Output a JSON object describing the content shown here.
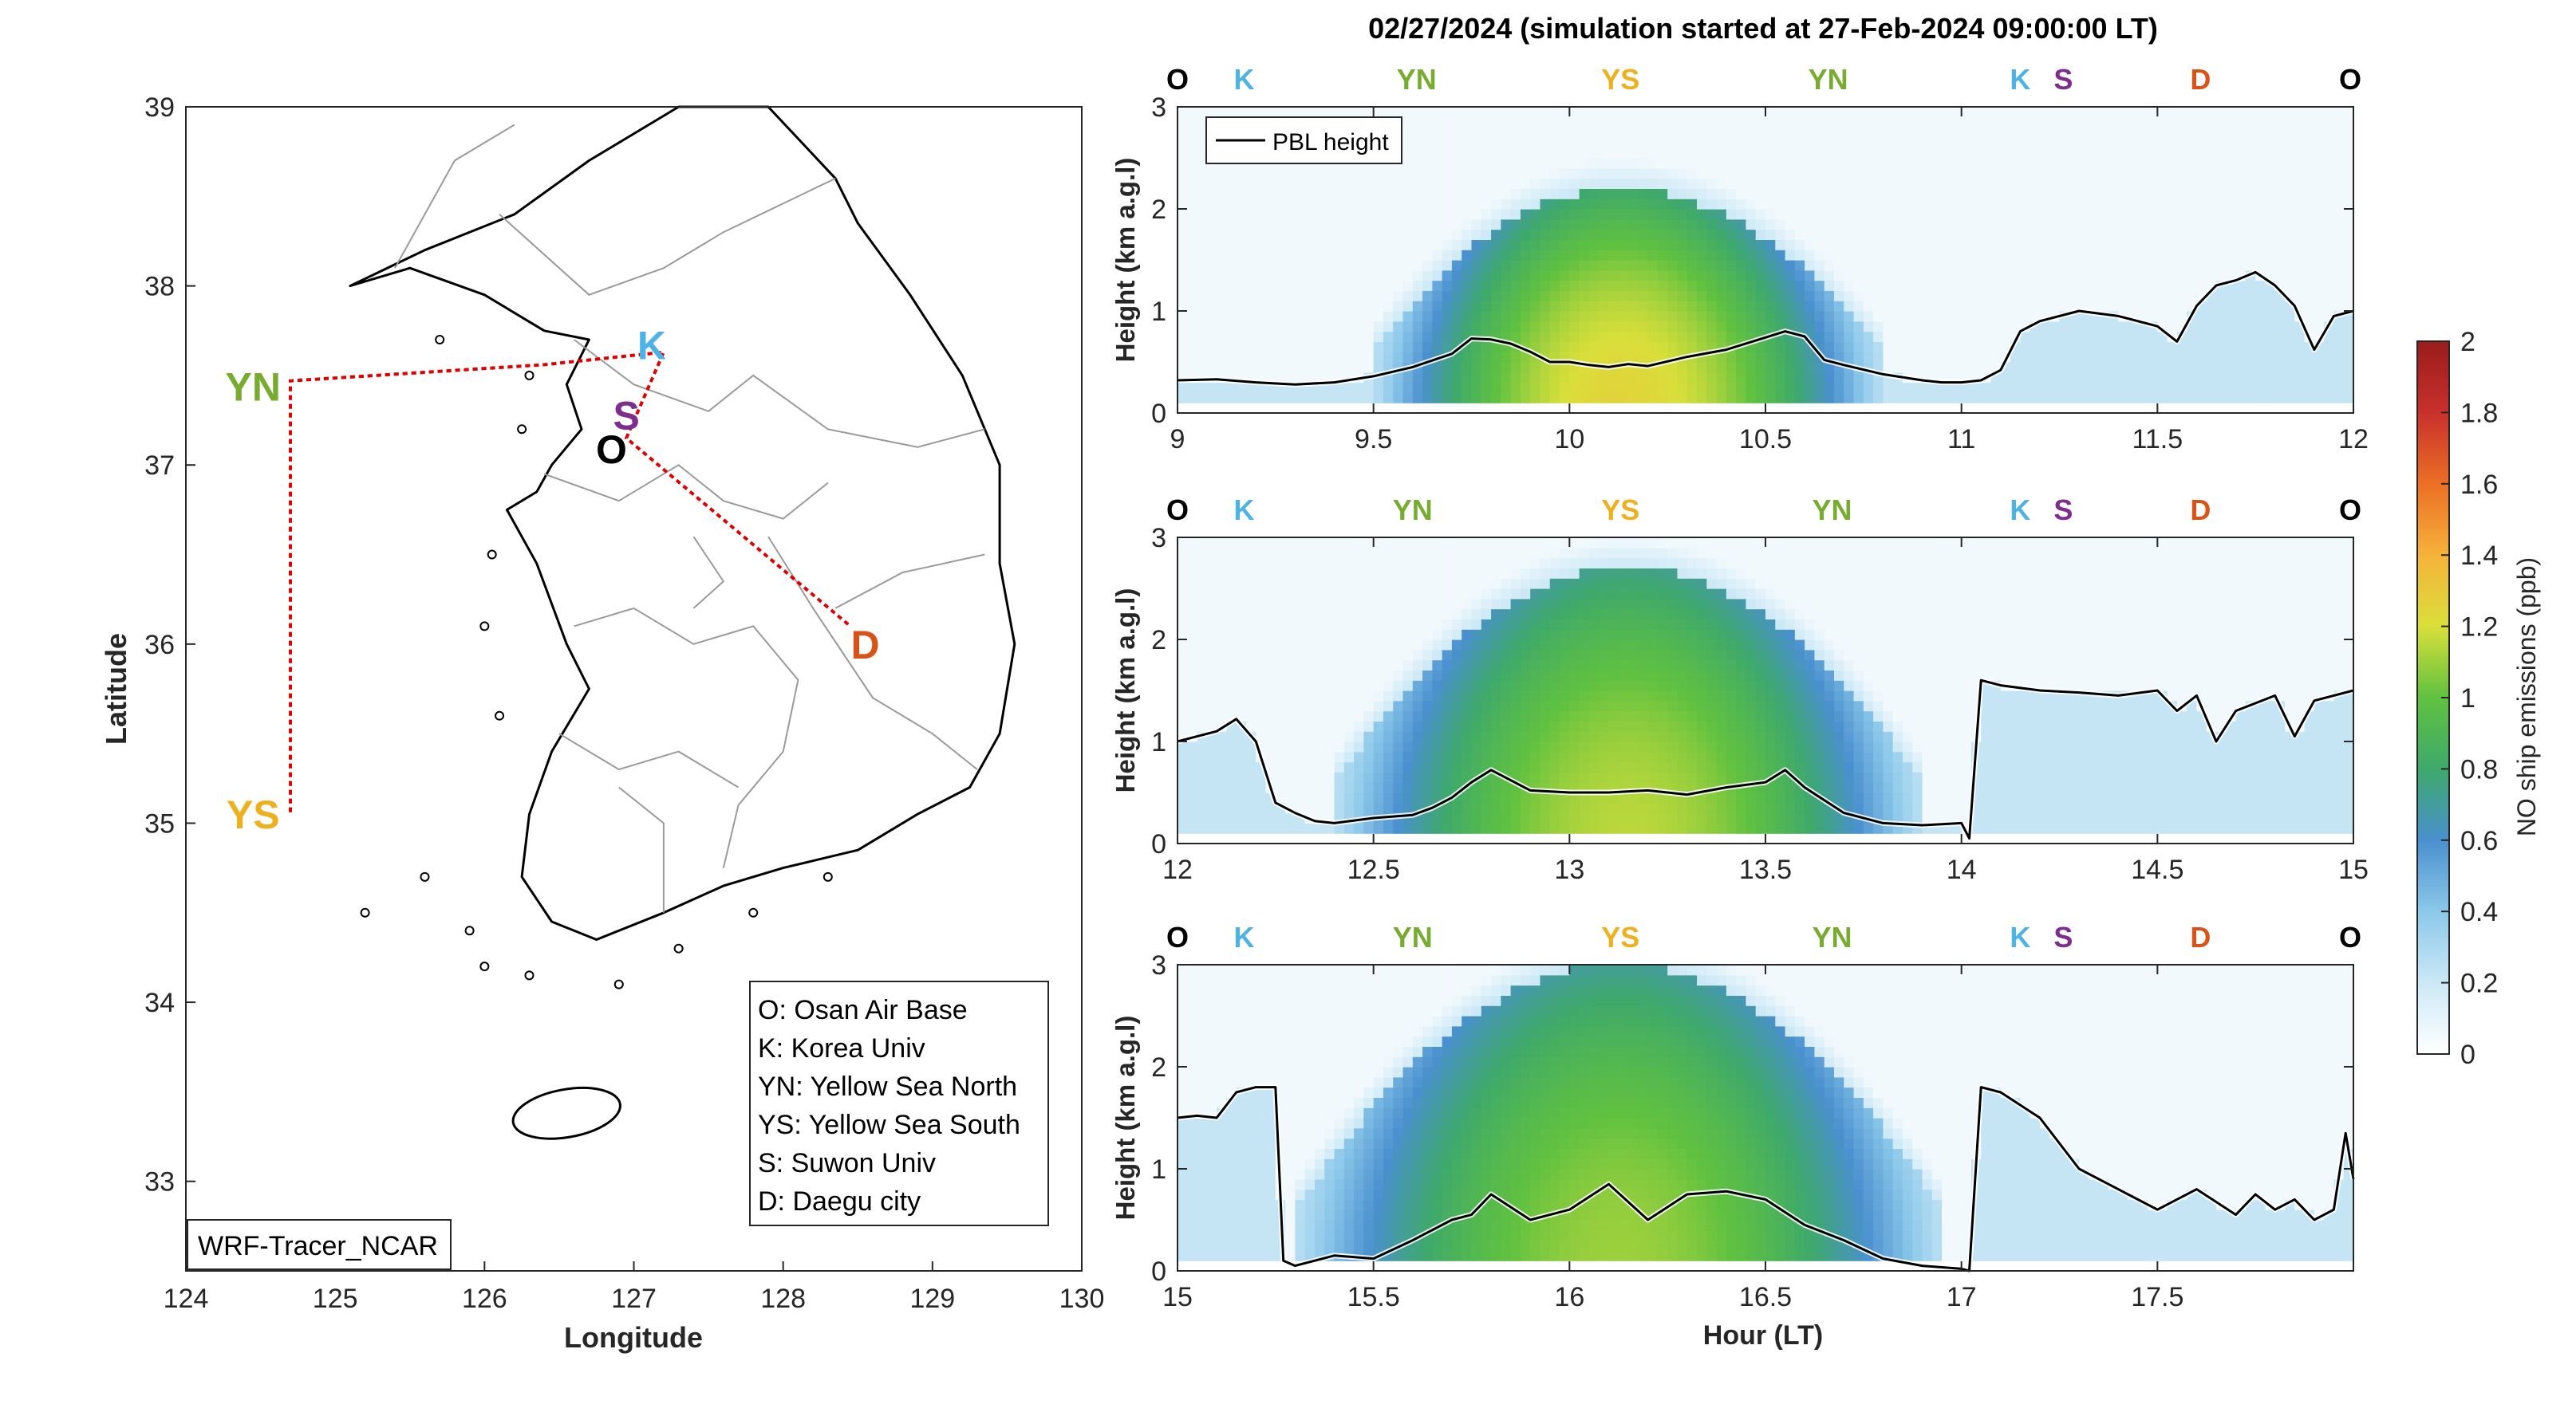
{
  "title": "02/27/2024 (simulation started at 27-Feb-2024 09:00:00 LT)",
  "colors": {
    "O": "#000000",
    "K": "#4db3e6",
    "YN": "#77ac30",
    "YS": "#edb120",
    "S": "#7e2f8e",
    "D": "#d95319",
    "route": "#e00000",
    "border": "#000000",
    "province": "#9a9a9a"
  },
  "map": {
    "xlabel": "Longitude",
    "ylabel": "Latitude",
    "xlim": [
      124,
      130
    ],
    "ylim": [
      32.5,
      39
    ],
    "xticks": [
      "124",
      "125",
      "126",
      "127",
      "128",
      "129",
      "130"
    ],
    "yticks": [
      "33",
      "34",
      "35",
      "36",
      "37",
      "38",
      "39"
    ],
    "model_label": "WRF-Tracer_NCAR",
    "route": [
      [
        126.95,
        37.15
      ],
      [
        127.2,
        37.63
      ],
      [
        126.4,
        37.56
      ],
      [
        124.7,
        37.47
      ],
      [
        124.7,
        35.05
      ],
      [
        124.7,
        37.47
      ],
      [
        126.4,
        37.56
      ],
      [
        127.2,
        37.63
      ],
      [
        126.95,
        37.15
      ],
      [
        128.45,
        36.1
      ]
    ],
    "sites": [
      {
        "code": "O",
        "lon": 126.85,
        "lat": 37.09
      },
      {
        "code": "K",
        "lon": 127.12,
        "lat": 37.67
      },
      {
        "code": "S",
        "lon": 126.95,
        "lat": 37.28
      },
      {
        "code": "YN",
        "lon": 124.45,
        "lat": 37.44
      },
      {
        "code": "YS",
        "lon": 124.45,
        "lat": 35.05
      },
      {
        "code": "D",
        "lon": 128.55,
        "lat": 36.0
      }
    ],
    "legend": [
      "O: Osan Air Base",
      "K: Korea Univ",
      "YN: Yellow Sea North",
      "YS: Yellow Sea South",
      "S: Suwon Univ",
      "D: Daegu city"
    ]
  },
  "chart_data": [
    {
      "type": "heatmap",
      "xlabel": "",
      "ylabel": "Height (km a.g.l)",
      "xlim": [
        9,
        12
      ],
      "ylim": [
        0,
        3
      ],
      "xticks": [
        "9",
        "9.5",
        "10",
        "10.5",
        "11",
        "11.5",
        "12"
      ],
      "yticks": [
        "0",
        "1",
        "2",
        "3"
      ],
      "legend": "PBL height",
      "waypoints": [
        {
          "label": "O",
          "x": 9.0
        },
        {
          "label": "K",
          "x": 9.17
        },
        {
          "label": "YN",
          "x": 9.61
        },
        {
          "label": "YS",
          "x": 10.13
        },
        {
          "label": "YN",
          "x": 10.66
        },
        {
          "label": "K",
          "x": 11.15
        },
        {
          "label": "S",
          "x": 11.26
        },
        {
          "label": "D",
          "x": 11.61
        },
        {
          "label": "O",
          "x": 12.0
        }
      ],
      "plume": {
        "start": 9.5,
        "peak": 10.13,
        "end": 10.8,
        "peak_top": 2.2,
        "peak_value": 1.0
      },
      "pbl_height": {
        "x": [
          9,
          9.1,
          9.2,
          9.3,
          9.4,
          9.5,
          9.6,
          9.7,
          9.75,
          9.8,
          9.85,
          9.9,
          9.95,
          10.0,
          10.05,
          10.1,
          10.15,
          10.2,
          10.3,
          10.4,
          10.5,
          10.55,
          10.6,
          10.65,
          10.7,
          10.8,
          10.9,
          10.95,
          11.0,
          11.05,
          11.1,
          11.15,
          11.2,
          11.3,
          11.4,
          11.5,
          11.55,
          11.6,
          11.65,
          11.7,
          11.75,
          11.8,
          11.85,
          11.9,
          11.95,
          12.0
        ],
        "y": [
          0.32,
          0.33,
          0.3,
          0.28,
          0.3,
          0.36,
          0.45,
          0.58,
          0.73,
          0.72,
          0.68,
          0.6,
          0.5,
          0.5,
          0.47,
          0.45,
          0.48,
          0.46,
          0.55,
          0.62,
          0.74,
          0.8,
          0.75,
          0.52,
          0.47,
          0.38,
          0.32,
          0.3,
          0.3,
          0.32,
          0.42,
          0.8,
          0.9,
          1.0,
          0.95,
          0.85,
          0.7,
          1.05,
          1.25,
          1.3,
          1.38,
          1.25,
          1.05,
          0.62,
          0.95,
          1.0
        ]
      }
    },
    {
      "type": "heatmap",
      "xlabel": "",
      "ylabel": "Height (km a.g.l)",
      "xlim": [
        12,
        15
      ],
      "ylim": [
        0,
        3
      ],
      "xticks": [
        "12",
        "12.5",
        "13",
        "13.5",
        "14",
        "14.5",
        "15"
      ],
      "yticks": [
        "0",
        "1",
        "2",
        "3"
      ],
      "waypoints": [
        {
          "label": "O",
          "x": 12.0
        },
        {
          "label": "K",
          "x": 12.17
        },
        {
          "label": "YN",
          "x": 12.6
        },
        {
          "label": "YS",
          "x": 13.13
        },
        {
          "label": "YN",
          "x": 13.67
        },
        {
          "label": "K",
          "x": 14.15
        },
        {
          "label": "S",
          "x": 14.26
        },
        {
          "label": "D",
          "x": 14.61
        },
        {
          "label": "O",
          "x": 15.0
        }
      ],
      "plume": {
        "start": 12.4,
        "peak": 13.15,
        "end": 13.9,
        "peak_top": 2.7,
        "peak_value": 0.9
      },
      "pbl_height": {
        "x": [
          12,
          12.05,
          12.1,
          12.15,
          12.2,
          12.25,
          12.3,
          12.35,
          12.4,
          12.5,
          12.6,
          12.65,
          12.7,
          12.75,
          12.8,
          12.85,
          12.9,
          13.0,
          13.1,
          13.2,
          13.3,
          13.4,
          13.5,
          13.55,
          13.6,
          13.7,
          13.8,
          13.9,
          14.0,
          14.02,
          14.05,
          14.1,
          14.2,
          14.3,
          14.4,
          14.5,
          14.55,
          14.6,
          14.65,
          14.7,
          14.8,
          14.85,
          14.9,
          15.0
        ],
        "y": [
          1.0,
          1.05,
          1.1,
          1.22,
          1.0,
          0.4,
          0.3,
          0.22,
          0.2,
          0.25,
          0.28,
          0.35,
          0.45,
          0.6,
          0.72,
          0.62,
          0.52,
          0.5,
          0.5,
          0.52,
          0.48,
          0.55,
          0.6,
          0.72,
          0.55,
          0.3,
          0.2,
          0.18,
          0.2,
          0.05,
          1.6,
          1.55,
          1.5,
          1.48,
          1.45,
          1.5,
          1.3,
          1.45,
          1.0,
          1.3,
          1.45,
          1.05,
          1.4,
          1.5
        ]
      }
    },
    {
      "type": "heatmap",
      "xlabel": "Hour (LT)",
      "ylabel": "Height (km a.g.l)",
      "xlim": [
        15,
        18
      ],
      "ylim": [
        0,
        3
      ],
      "xticks": [
        "15",
        "15.5",
        "16",
        "16.5",
        "17",
        "17.5"
      ],
      "yticks": [
        "0",
        "1",
        "2",
        "3"
      ],
      "waypoints": [
        {
          "label": "O",
          "x": 15.0
        },
        {
          "label": "K",
          "x": 15.17
        },
        {
          "label": "YN",
          "x": 15.6
        },
        {
          "label": "YS",
          "x": 16.13
        },
        {
          "label": "YN",
          "x": 16.67
        },
        {
          "label": "K",
          "x": 17.15
        },
        {
          "label": "S",
          "x": 17.26
        },
        {
          "label": "D",
          "x": 17.61
        },
        {
          "label": "O",
          "x": 18.0
        }
      ],
      "plume": {
        "start": 15.3,
        "peak": 16.13,
        "end": 16.95,
        "peak_top": 3.0,
        "peak_value": 0.85
      },
      "pbl_height": {
        "x": [
          15,
          15.05,
          15.1,
          15.15,
          15.2,
          15.25,
          15.27,
          15.3,
          15.35,
          15.4,
          15.5,
          15.6,
          15.7,
          15.75,
          15.8,
          15.9,
          16.0,
          16.1,
          16.2,
          16.3,
          16.4,
          16.5,
          16.6,
          16.7,
          16.8,
          16.9,
          17.0,
          17.02,
          17.05,
          17.1,
          17.2,
          17.3,
          17.4,
          17.5,
          17.6,
          17.7,
          17.75,
          17.8,
          17.85,
          17.9,
          17.95,
          17.98,
          18.0
        ],
        "y": [
          1.5,
          1.52,
          1.5,
          1.75,
          1.8,
          1.8,
          0.1,
          0.05,
          0.1,
          0.15,
          0.12,
          0.3,
          0.5,
          0.55,
          0.75,
          0.5,
          0.6,
          0.85,
          0.5,
          0.75,
          0.78,
          0.7,
          0.45,
          0.3,
          0.12,
          0.05,
          0.02,
          0.0,
          1.8,
          1.75,
          1.5,
          1.0,
          0.8,
          0.6,
          0.8,
          0.55,
          0.75,
          0.6,
          0.7,
          0.5,
          0.6,
          1.35,
          0.9
        ]
      }
    }
  ],
  "colorbar": {
    "label": "NO ship emissions (ppb)",
    "ticks": [
      "0",
      "0.2",
      "0.4",
      "0.6",
      "0.8",
      "1",
      "1.2",
      "1.4",
      "1.6",
      "1.8",
      "2"
    ],
    "range": [
      0,
      2
    ],
    "stops": [
      "#ffffff",
      "#cbe8f6",
      "#8cc8ea",
      "#4a90cf",
      "#3ea96b",
      "#60c140",
      "#d9df3a",
      "#f6b23a",
      "#ec6f25",
      "#c9302c",
      "#991c1c"
    ]
  }
}
